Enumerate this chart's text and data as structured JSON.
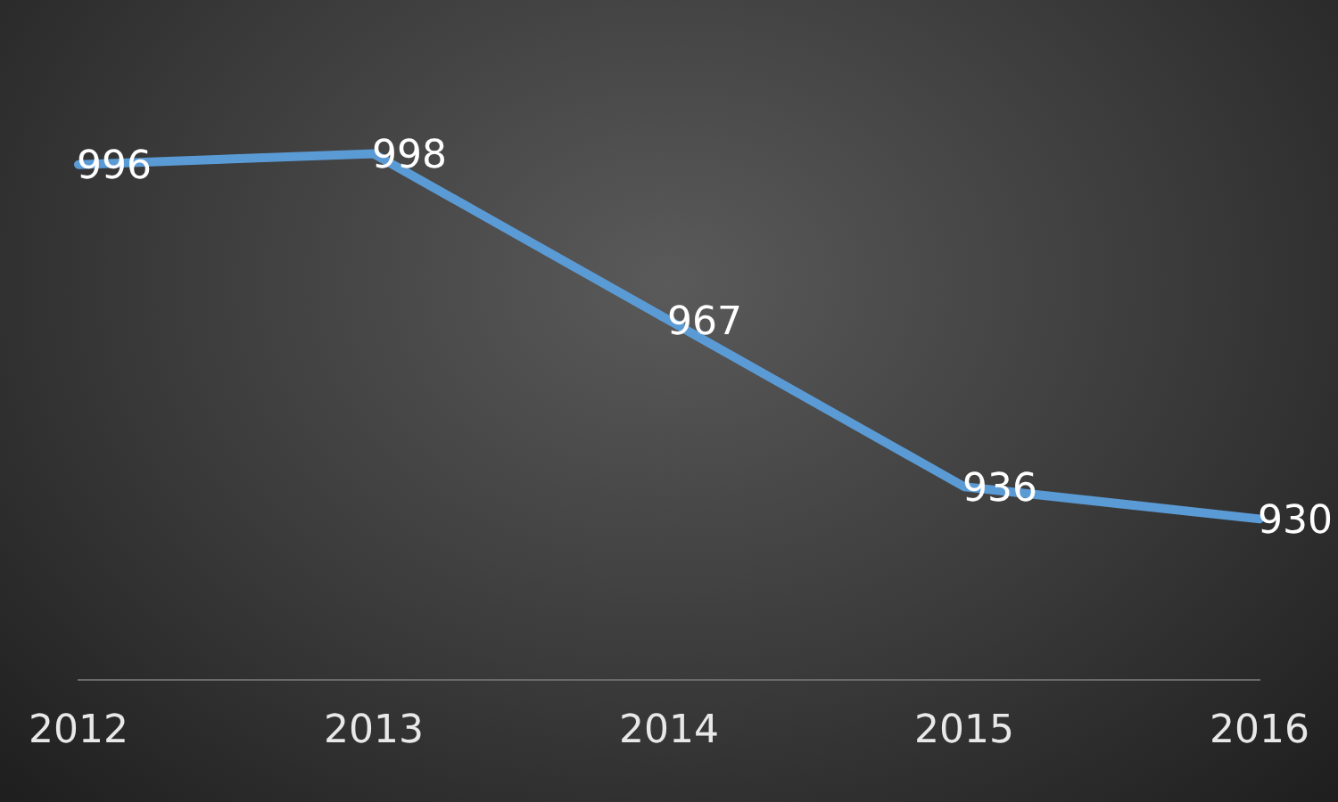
{
  "chart_data": {
    "type": "line",
    "categories": [
      "2012",
      "2013",
      "2014",
      "2015",
      "2016"
    ],
    "series": [
      {
        "color": "#5b9bd5",
        "values": [
          996,
          998,
          967,
          936,
          930
        ]
      }
    ],
    "data_labels": true,
    "grid": false,
    "legend": false,
    "marker": "none",
    "line_style": "solid"
  }
}
